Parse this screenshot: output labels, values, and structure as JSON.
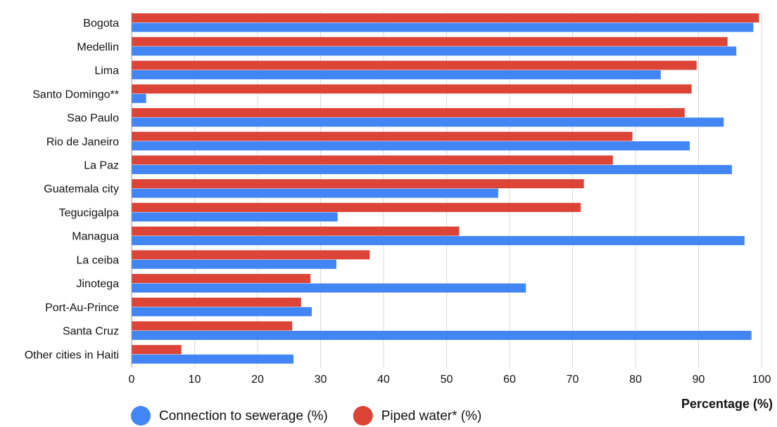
{
  "chart_data": {
    "type": "hbar",
    "categories": [
      "Bogota",
      "Medellin",
      "Lima",
      "Santo Domingo**",
      "Sao Paulo",
      "Rio de Janeiro",
      "La Paz",
      "Guatemala city",
      "Tegucigalpa",
      "Managua",
      "La ceiba",
      "Jinotega",
      "Port-Au-Prince",
      "Santa Cruz",
      "Other cities in Haiti"
    ],
    "series": [
      {
        "name": "Connection to sewerage (%)",
        "color": "#4285f4",
        "values": [
          98.7,
          96.0,
          84.0,
          2.3,
          94.0,
          88.6,
          95.3,
          58.2,
          32.7,
          97.3,
          32.5,
          62.6,
          28.6,
          98.4,
          25.7
        ]
      },
      {
        "name": "Piped water* (%)",
        "color": "#db4437",
        "values": [
          99.6,
          94.6,
          89.7,
          88.9,
          87.8,
          79.5,
          76.4,
          71.8,
          71.3,
          52.0,
          37.8,
          28.4,
          26.9,
          25.5,
          7.9
        ]
      }
    ],
    "x_label": "Percentage (%)",
    "xlim": [
      0,
      100
    ],
    "xticks": [
      0,
      10,
      20,
      30,
      40,
      50,
      60,
      70,
      80,
      90,
      100
    ],
    "grid": true
  }
}
